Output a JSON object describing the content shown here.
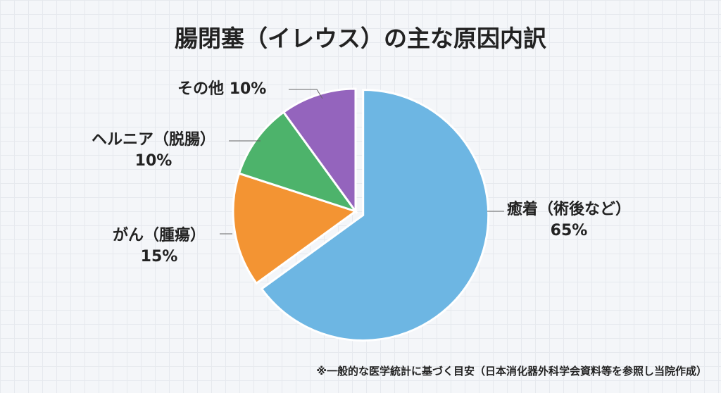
{
  "chart_data": {
    "type": "pie",
    "title": "腸閉塞（イレウス）の主な原因内訳",
    "slices": [
      {
        "label": "癒着（術後など）",
        "value": 65,
        "value_label": "65%",
        "color": "#6db6e3",
        "exploded": true
      },
      {
        "label": "がん（腫瘍）",
        "value": 15,
        "value_label": "15%",
        "color": "#f39433"
      },
      {
        "label": "ヘルニア（脱腸）",
        "value": 10,
        "value_label": "10%",
        "color": "#4db36b"
      },
      {
        "label": "その他",
        "value": 10,
        "value_label": "10%",
        "color": "#9464bd"
      }
    ],
    "start_angle": "top, clockwise",
    "footnote": "※一般的な医学統計に基づく目安（日本消化器外科学会資料等を参照し当院作成）"
  }
}
